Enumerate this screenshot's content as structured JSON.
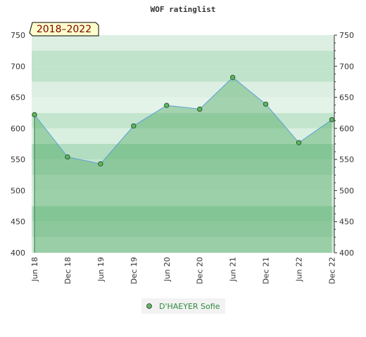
{
  "chart_data": {
    "type": "area",
    "title": "WOF ratinglist",
    "period_badge": "2018–2022",
    "x_categories": [
      "Jun 18",
      "Dec 18",
      "Jun 19",
      "Dec 19",
      "Jun 20",
      "Dec 20",
      "Jun 21",
      "Dec 21",
      "Jun 22",
      "Dec 22"
    ],
    "y_ticks": [
      400,
      450,
      500,
      550,
      600,
      650,
      700,
      750
    ],
    "ylim": [
      400,
      750
    ],
    "grid": true,
    "legend_position": "bottom-center",
    "series": [
      {
        "name": "D'HAEYER Sofie",
        "values": [
          622,
          554,
          543,
          604,
          637,
          631,
          682,
          639,
          577,
          614
        ]
      }
    ],
    "colors": {
      "line": "#5aa0d8",
      "marker": "#5cb85c",
      "area_fill": "#3a9e50",
      "band_dark": "#7cc496",
      "band_light": "#e6f4ea",
      "legend_text": "#2e8b3e",
      "badge_bg": "#ffffcc",
      "badge_text": "#7a0000"
    }
  }
}
